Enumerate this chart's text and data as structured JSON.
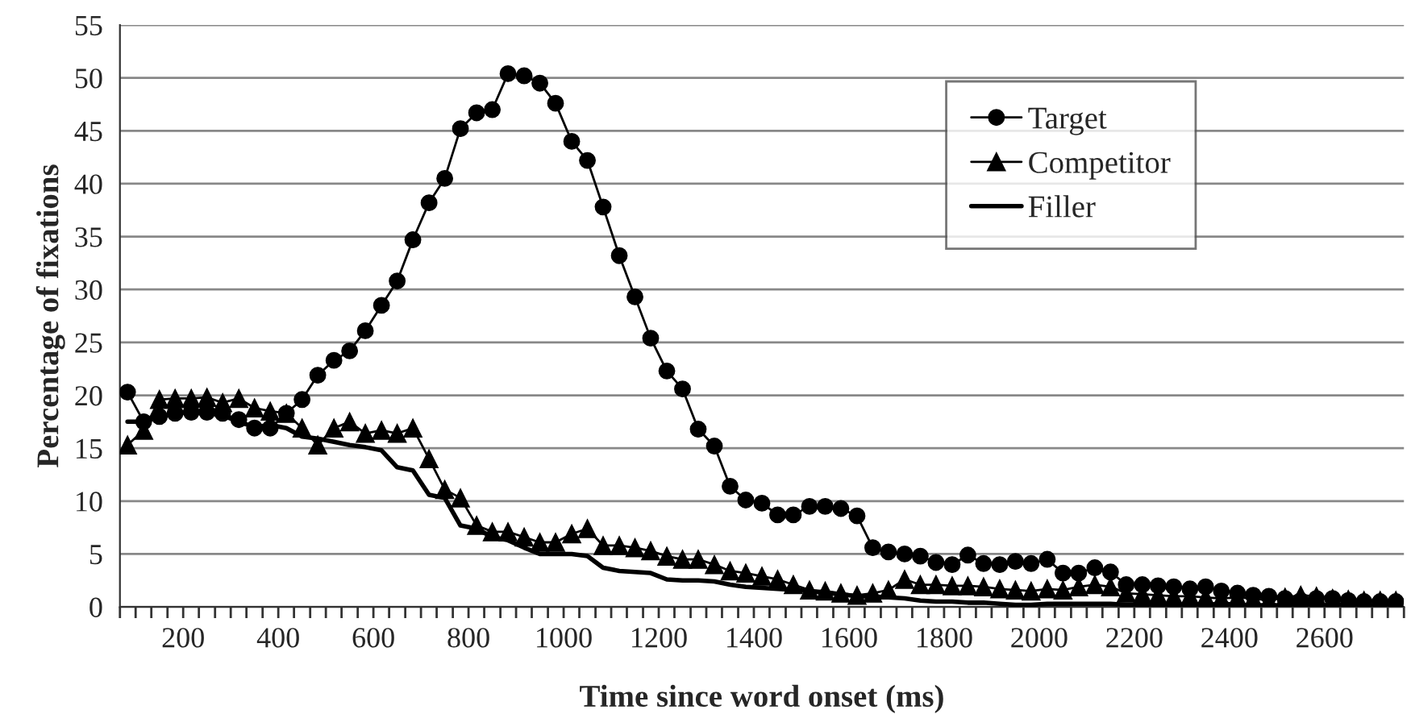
{
  "chart_data": {
    "type": "line",
    "xlabel": "Time since word onset (ms)",
    "ylabel": "Percentage of fixations",
    "x": [
      83,
      117,
      150,
      183,
      217,
      250,
      283,
      317,
      350,
      383,
      417,
      450,
      483,
      517,
      550,
      583,
      617,
      650,
      683,
      717,
      750,
      783,
      817,
      850,
      883,
      917,
      950,
      983,
      1017,
      1050,
      1083,
      1117,
      1150,
      1183,
      1217,
      1250,
      1283,
      1317,
      1350,
      1383,
      1417,
      1450,
      1483,
      1517,
      1550,
      1583,
      1617,
      1650,
      1683,
      1717,
      1750,
      1783,
      1817,
      1850,
      1883,
      1917,
      1950,
      1983,
      2017,
      2050,
      2083,
      2117,
      2150,
      2183,
      2217,
      2250,
      2283,
      2317,
      2350,
      2383,
      2417,
      2450,
      2483,
      2517,
      2550,
      2583,
      2617,
      2650,
      2683,
      2717,
      2750
    ],
    "series": [
      {
        "name": "Target",
        "color": "#000000",
        "marker": "circle",
        "values": [
          20.3,
          17.5,
          18.0,
          18.3,
          18.4,
          18.4,
          18.3,
          17.7,
          16.9,
          16.9,
          18.3,
          19.6,
          21.9,
          23.3,
          24.2,
          26.1,
          28.5,
          30.8,
          34.7,
          38.2,
          40.5,
          45.2,
          46.7,
          47.0,
          50.4,
          50.2,
          49.5,
          47.6,
          44.0,
          42.2,
          37.8,
          33.2,
          29.3,
          25.4,
          22.3,
          20.6,
          16.8,
          15.2,
          11.4,
          10.1,
          9.8,
          8.7,
          8.7,
          9.5,
          9.5,
          9.3,
          8.6,
          5.6,
          5.2,
          5.0,
          4.8,
          4.2,
          4.0,
          4.9,
          4.1,
          4.0,
          4.3,
          4.1,
          4.5,
          3.2,
          3.2,
          3.7,
          3.3,
          2.1,
          2.1,
          2.0,
          1.9,
          1.7,
          1.9,
          1.5,
          1.3,
          1.1,
          1.0,
          0.8,
          0.6,
          0.8,
          0.8,
          0.6,
          0.5,
          0.5,
          0.5
        ]
      },
      {
        "name": "Competitor",
        "color": "#000000",
        "marker": "triangle",
        "values": [
          15.3,
          16.7,
          19.6,
          19.7,
          19.7,
          19.8,
          19.3,
          19.7,
          18.8,
          18.5,
          18.3,
          16.9,
          15.3,
          16.9,
          17.5,
          16.4,
          16.7,
          16.4,
          16.9,
          14.0,
          11.1,
          10.3,
          7.7,
          7.1,
          7.1,
          6.6,
          6.1,
          6.1,
          6.9,
          7.4,
          5.8,
          5.8,
          5.6,
          5.3,
          4.8,
          4.5,
          4.5,
          4.0,
          3.4,
          3.2,
          2.9,
          2.6,
          2.1,
          1.6,
          1.5,
          1.3,
          1.1,
          1.3,
          1.6,
          2.6,
          2.1,
          2.1,
          2.0,
          2.0,
          1.9,
          1.7,
          1.6,
          1.5,
          1.7,
          1.6,
          1.9,
          2.1,
          1.9,
          1.3,
          1.2,
          1.1,
          1.0,
          1.0,
          0.9,
          0.8,
          0.9,
          0.8,
          0.6,
          0.9,
          1.1,
          1.0,
          0.8,
          0.7,
          0.6,
          0.6,
          0.6
        ]
      },
      {
        "name": "Filler",
        "color": "#000000",
        "marker": "none",
        "values": [
          17.5,
          17.5,
          18.0,
          18.3,
          18.4,
          18.3,
          18.1,
          17.5,
          17.0,
          17.2,
          16.9,
          16.1,
          15.9,
          15.6,
          15.3,
          15.1,
          14.8,
          13.2,
          12.9,
          10.6,
          10.3,
          7.7,
          7.4,
          6.6,
          6.3,
          5.6,
          5.0,
          5.0,
          5.0,
          4.8,
          3.7,
          3.4,
          3.3,
          3.2,
          2.6,
          2.5,
          2.5,
          2.4,
          2.1,
          1.9,
          1.8,
          1.7,
          1.6,
          1.5,
          1.3,
          1.2,
          1.0,
          1.0,
          0.9,
          0.8,
          0.6,
          0.5,
          0.5,
          0.4,
          0.4,
          0.3,
          0.2,
          0.2,
          0.3,
          0.3,
          0.3,
          0.3,
          0.3,
          0.2,
          0.2,
          0.2,
          0.2,
          0.2,
          0.2,
          0.3,
          0.2,
          0.1,
          0.2,
          0.1,
          0.1,
          0.1,
          0.2,
          0.2,
          0.2,
          0.1,
          0.1
        ]
      }
    ],
    "xlim": [
      67,
      2767
    ],
    "xticks": [
      {
        "value": 67,
        "label": null
      },
      {
        "value": 100,
        "label": null
      },
      {
        "value": 133,
        "label": null
      },
      {
        "value": 167,
        "label": null
      },
      200,
      {
        "value": 233,
        "label": null
      },
      {
        "value": 267,
        "label": null
      },
      {
        "value": 300,
        "label": null
      },
      {
        "value": 333,
        "label": null
      },
      {
        "value": 367,
        "label": null
      },
      400,
      {
        "value": 433,
        "label": null
      },
      {
        "value": 467,
        "label": null
      },
      {
        "value": 500,
        "label": null
      },
      {
        "value": 533,
        "label": null
      },
      {
        "value": 567,
        "label": null
      },
      600,
      {
        "value": 633,
        "label": null
      },
      {
        "value": 667,
        "label": null
      },
      {
        "value": 700,
        "label": null
      },
      {
        "value": 733,
        "label": null
      },
      {
        "value": 767,
        "label": null
      },
      800,
      {
        "value": 833,
        "label": null
      },
      {
        "value": 867,
        "label": null
      },
      {
        "value": 900,
        "label": null
      },
      {
        "value": 933,
        "label": null
      },
      {
        "value": 967,
        "label": null
      },
      1000,
      {
        "value": 1033,
        "label": null
      },
      {
        "value": 1067,
        "label": null
      },
      {
        "value": 1100,
        "label": null
      },
      {
        "value": 1133,
        "label": null
      },
      {
        "value": 1167,
        "label": null
      },
      1200,
      {
        "value": 1233,
        "label": null
      },
      {
        "value": 1267,
        "label": null
      },
      {
        "value": 1300,
        "label": null
      },
      {
        "value": 1333,
        "label": null
      },
      {
        "value": 1367,
        "label": null
      },
      1400,
      {
        "value": 1433,
        "label": null
      },
      {
        "value": 1467,
        "label": null
      },
      {
        "value": 1500,
        "label": null
      },
      {
        "value": 1533,
        "label": null
      },
      {
        "value": 1567,
        "label": null
      },
      1600,
      {
        "value": 1633,
        "label": null
      },
      {
        "value": 1667,
        "label": null
      },
      {
        "value": 1700,
        "label": null
      },
      {
        "value": 1733,
        "label": null
      },
      {
        "value": 1767,
        "label": null
      },
      1800,
      {
        "value": 1833,
        "label": null
      },
      {
        "value": 1867,
        "label": null
      },
      {
        "value": 1900,
        "label": null
      },
      {
        "value": 1933,
        "label": null
      },
      {
        "value": 1967,
        "label": null
      },
      2000,
      {
        "value": 2033,
        "label": null
      },
      {
        "value": 2067,
        "label": null
      },
      {
        "value": 2100,
        "label": null
      },
      {
        "value": 2133,
        "label": null
      },
      {
        "value": 2167,
        "label": null
      },
      2200,
      {
        "value": 2233,
        "label": null
      },
      {
        "value": 2267,
        "label": null
      },
      {
        "value": 2300,
        "label": null
      },
      {
        "value": 2333,
        "label": null
      },
      {
        "value": 2367,
        "label": null
      },
      2400,
      {
        "value": 2433,
        "label": null
      },
      {
        "value": 2467,
        "label": null
      },
      {
        "value": 2500,
        "label": null
      },
      {
        "value": 2533,
        "label": null
      },
      {
        "value": 2567,
        "label": null
      },
      2600,
      {
        "value": 2633,
        "label": null
      },
      {
        "value": 2667,
        "label": null
      },
      {
        "value": 2700,
        "label": null
      },
      {
        "value": 2733,
        "label": null
      },
      {
        "value": 2767,
        "label": null
      }
    ],
    "ylim": [
      0,
      55
    ],
    "yticks": [
      0,
      5,
      10,
      15,
      20,
      25,
      30,
      35,
      40,
      45,
      50,
      55
    ],
    "grid": "y",
    "legend": "top right",
    "line_style": "solid"
  }
}
